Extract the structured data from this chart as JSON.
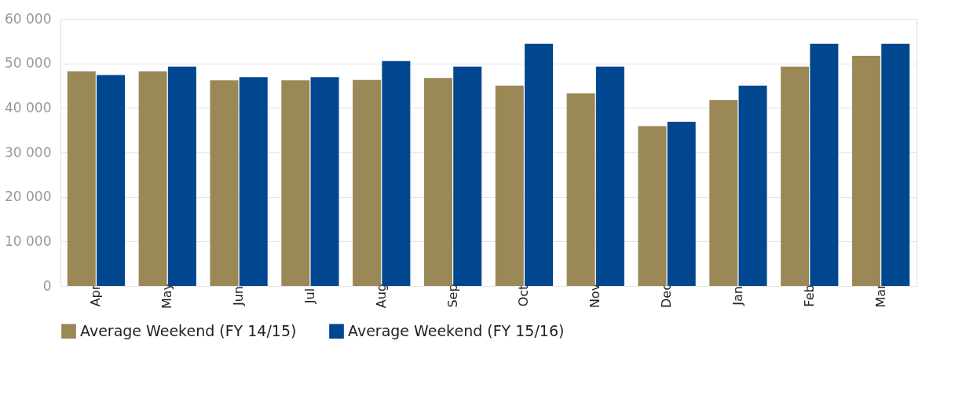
{
  "chart_data": {
    "type": "bar",
    "categories": [
      "Apr",
      "May",
      "Jun",
      "Jul",
      "Aug",
      "Sep",
      "Oct",
      "Nov",
      "Dec",
      "Jan",
      "Feb",
      "Mar"
    ],
    "series": [
      {
        "name": "Average Weekend (FY 14/15)",
        "color": "#9a8856",
        "values": [
          48200,
          48200,
          46200,
          46200,
          46300,
          46700,
          45000,
          43300,
          35900,
          41800,
          49300,
          51700
        ]
      },
      {
        "name": "Average Weekend (FY 15/16)",
        "color": "#00478f",
        "values": [
          47400,
          49300,
          46900,
          46900,
          50500,
          49300,
          54400,
          49300,
          36900,
          45000,
          54400,
          54400
        ]
      }
    ],
    "ylim": [
      0,
      60000
    ],
    "yticks": [
      {
        "value": 0,
        "label": "0"
      },
      {
        "value": 10000,
        "label": "10 000"
      },
      {
        "value": 20000,
        "label": "20 000"
      },
      {
        "value": 30000,
        "label": "30 000"
      },
      {
        "value": 40000,
        "label": "40 000"
      },
      {
        "value": 50000,
        "label": "50 000"
      },
      {
        "value": 60000,
        "label": "60 000"
      }
    ],
    "grid": "y",
    "legend": "bottom"
  }
}
